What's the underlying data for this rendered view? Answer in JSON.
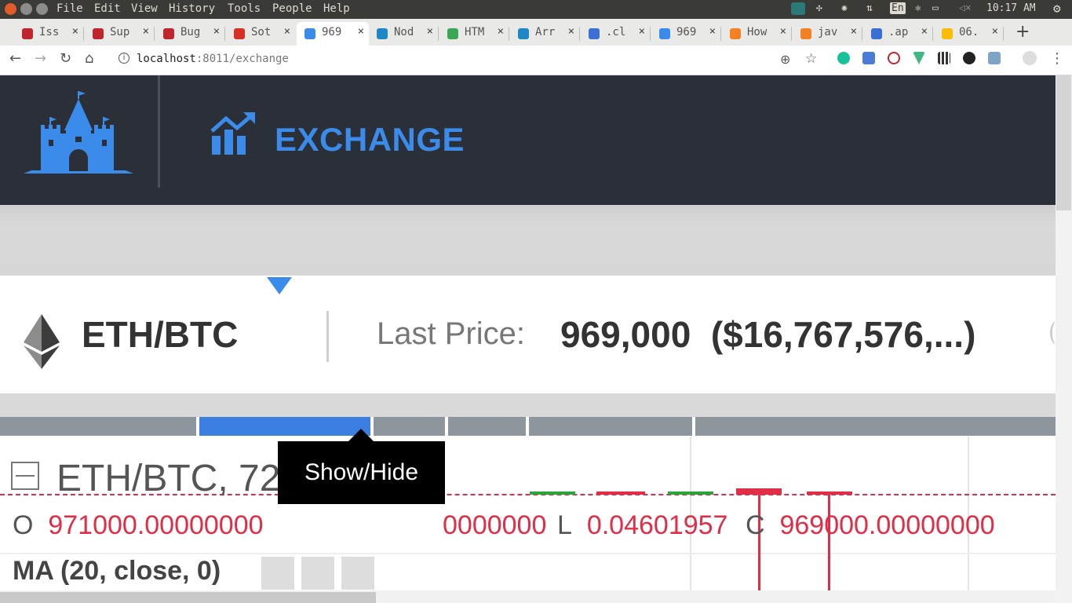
{
  "menubar": {
    "items": [
      "File",
      "Edit",
      "View",
      "History",
      "Tools",
      "People",
      "Help"
    ],
    "indicators": {
      "lang": "En",
      "time": "10:17 AM"
    }
  },
  "tabs": [
    {
      "title": "Iss",
      "favicon": "red-arc-icon",
      "color": "#c0252b"
    },
    {
      "title": "Sup",
      "favicon": "red-arc-icon",
      "color": "#c0252b"
    },
    {
      "title": "Bug",
      "favicon": "red-arc-icon",
      "color": "#c0252b"
    },
    {
      "title": "Sot",
      "favicon": "gmail-icon",
      "color": "#d93025"
    },
    {
      "title": "969",
      "favicon": "castle-icon",
      "color": "#3b8beb",
      "active": true
    },
    {
      "title": "Nod",
      "favicon": "node-icon",
      "color": "#1e88c7"
    },
    {
      "title": "HTM",
      "favicon": "html-icon",
      "color": "#3aa757"
    },
    {
      "title": "Arr",
      "favicon": "node-icon",
      "color": "#1e88c7"
    },
    {
      "title": ".cl",
      "favicon": "c-icon",
      "color": "#3b6fd4"
    },
    {
      "title": "969",
      "favicon": "castle-icon",
      "color": "#3b8beb"
    },
    {
      "title": "How",
      "favicon": "stackoverflow-icon",
      "color": "#f48024"
    },
    {
      "title": "jav",
      "favicon": "stackoverflow-icon",
      "color": "#f48024"
    },
    {
      "title": ".ap",
      "favicon": "c-icon",
      "color": "#3b6fd4"
    },
    {
      "title": "06.",
      "favicon": "drive-icon",
      "color": "#fbbc04"
    }
  ],
  "address": {
    "host": "localhost",
    "rest": ":8011/exchange"
  },
  "header": {
    "title": "EXCHANGE"
  },
  "pair": {
    "name": "ETH/BTC",
    "last_price_label": "Last Price:",
    "last_price": "969,000",
    "last_price_usd": "($16,767,576,...)"
  },
  "chart": {
    "legend_title": "ETH/BTC, 720",
    "ohlc": {
      "o_label": "O",
      "o_value": "971000.00000000",
      "h_value": "0000000",
      "l_label": "L",
      "l_value": "0.04601957",
      "c_label": "C",
      "c_value": "969000.00000000"
    },
    "indicator": "MA (20, close, 0)",
    "tooltip": "Show/Hide",
    "colors": {
      "down": "#e22d46",
      "up": "#2aa53a",
      "accent": "#3b7fe0"
    }
  }
}
